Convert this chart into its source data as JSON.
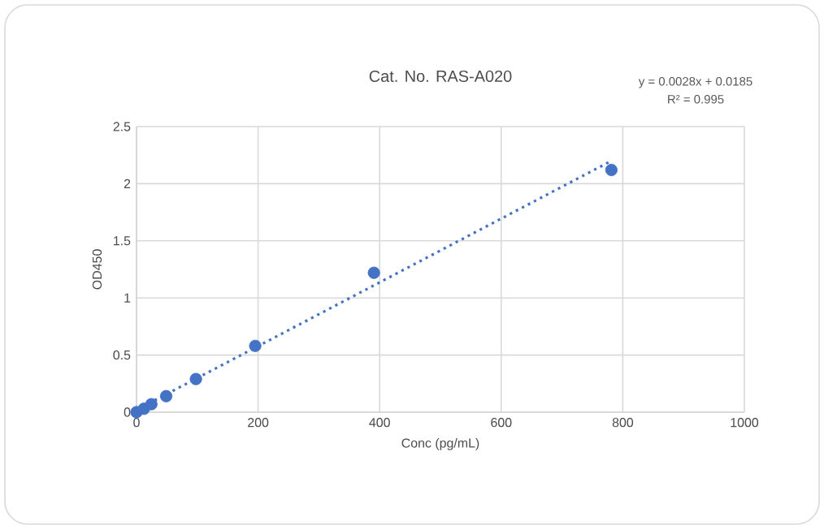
{
  "chart_data": {
    "type": "scatter",
    "title": "Cat. No. RAS-A020",
    "xlabel": "Conc (pg/mL)",
    "ylabel": "OD450",
    "annotations": [
      "y = 0.0028x + 0.0185",
      "R² = 0.995"
    ],
    "xlim": [
      0,
      1000
    ],
    "xticks": [
      0,
      200,
      400,
      600,
      800,
      1000
    ],
    "ylim": [
      0,
      2.5
    ],
    "yticks": [
      0,
      {
        "value": 0.5,
        "label": "0.5"
      },
      1,
      {
        "value": 1.5,
        "label": "1.5"
      },
      2,
      {
        "value": 2.5,
        "label": "2.5"
      }
    ],
    "grid": true,
    "marker": "circle",
    "series": [
      {
        "color": "#4472c4",
        "x": [
          0,
          12.2,
          24.4,
          48.8,
          97.7,
          195.3,
          390.6,
          781.25
        ],
        "values": [
          0,
          0.03,
          0.07,
          0.14,
          0.29,
          0.58,
          1.22,
          2.12
        ]
      },
      {
        "type": "line",
        "color": "#4472c4",
        "line_style": "dotted",
        "marker": "none",
        "x": [
          0,
          781.25
        ],
        "values": [
          0.02,
          2.2
        ]
      }
    ]
  }
}
